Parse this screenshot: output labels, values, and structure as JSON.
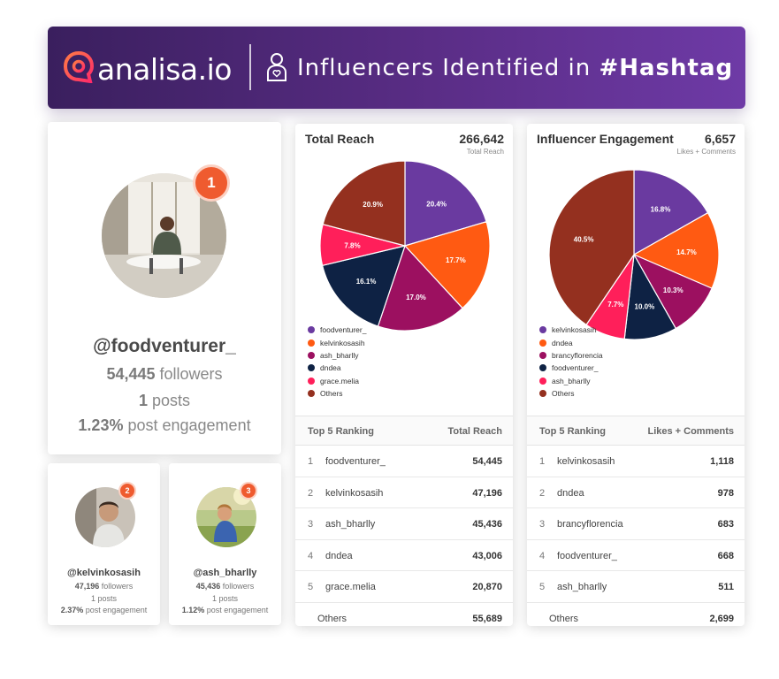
{
  "banner": {
    "logo_text": "analisa.io",
    "title_prefix": "Influencers Identified in ",
    "title_hashtag": "#Hashtag",
    "colors": {
      "start": "#3a1f5e",
      "end": "#6e3aa6"
    },
    "icons": [
      "analisa-logo-icon",
      "influencer-badge-icon"
    ]
  },
  "top_influencer": {
    "rank": "1",
    "handle": "@foodventurer_",
    "followers_count": "54,445",
    "followers_label": " followers",
    "posts_count": "1",
    "posts_label": " posts",
    "engagement_value": "1.23%",
    "engagement_label": " post engagement"
  },
  "influencers": [
    {
      "rank": "2",
      "handle": "@kelvinkosasih",
      "followers_count": "47,196",
      "followers_label": " followers",
      "posts": "1 posts",
      "engagement_value": "2.37%",
      "engagement_label": " post engagement"
    },
    {
      "rank": "3",
      "handle": "@ash_bharlly",
      "followers_count": "45,436",
      "followers_label": " followers",
      "posts": "1 posts",
      "engagement_value": "1.12%",
      "engagement_label": " post engagement"
    }
  ],
  "reach": {
    "title": "Total Reach",
    "total": "266,642",
    "unit": "Total Reach",
    "table_head_left": "Top 5 Ranking",
    "table_head_right": "Total Reach",
    "rows": [
      {
        "n": "1",
        "name": "foodventurer_",
        "value": "54,445"
      },
      {
        "n": "2",
        "name": "kelvinkosasih",
        "value": "47,196"
      },
      {
        "n": "3",
        "name": "ash_bharlly",
        "value": "45,436"
      },
      {
        "n": "4",
        "name": "dndea",
        "value": "43,006"
      },
      {
        "n": "5",
        "name": "grace.melia",
        "value": "20,870"
      }
    ],
    "others_label": "Others",
    "others_value": "55,689"
  },
  "engagement": {
    "title": "Influencer Engagement",
    "total": "6,657",
    "unit": "Likes + Comments",
    "table_head_left": "Top 5 Ranking",
    "table_head_right": "Likes + Comments",
    "rows": [
      {
        "n": "1",
        "name": "kelvinkosasih",
        "value": "1,118"
      },
      {
        "n": "2",
        "name": "dndea",
        "value": "978"
      },
      {
        "n": "3",
        "name": "brancyflorencia",
        "value": "683"
      },
      {
        "n": "4",
        "name": "foodventurer_",
        "value": "668"
      },
      {
        "n": "5",
        "name": "ash_bharlly",
        "value": "511"
      }
    ],
    "others_label": "Others",
    "others_value": "2,699"
  },
  "chart_data": [
    {
      "type": "pie",
      "title": "Total Reach",
      "categories": [
        "foodventurer_",
        "kelvinkosasih",
        "ash_bharlly",
        "dndea",
        "grace.melia",
        "Others"
      ],
      "values": [
        20.4,
        17.7,
        17.0,
        16.1,
        7.8,
        20.9
      ],
      "labels": [
        "20.4%",
        "17.7%",
        "17.0%",
        "16.1%",
        "7.8%",
        "20.9%"
      ],
      "colors": [
        "#6a3aa0",
        "#ff5a12",
        "#9c1060",
        "#0e2244",
        "#ff1f5a",
        "#94301f"
      ],
      "legend": "bottom-left"
    },
    {
      "type": "pie",
      "title": "Influencer Engagement",
      "categories": [
        "kelvinkosasih",
        "dndea",
        "brancyflorencia",
        "foodventurer_",
        "ash_bharlly",
        "Others"
      ],
      "values": [
        16.8,
        14.7,
        10.3,
        10.0,
        7.7,
        40.5
      ],
      "labels": [
        "16.8%",
        "14.7%",
        "10.3%",
        "10.0%",
        "7.7%",
        "40.5%"
      ],
      "colors": [
        "#6a3aa0",
        "#ff5a12",
        "#9c1060",
        "#0e2244",
        "#ff1f5a",
        "#94301f"
      ],
      "legend": "bottom-left"
    }
  ]
}
